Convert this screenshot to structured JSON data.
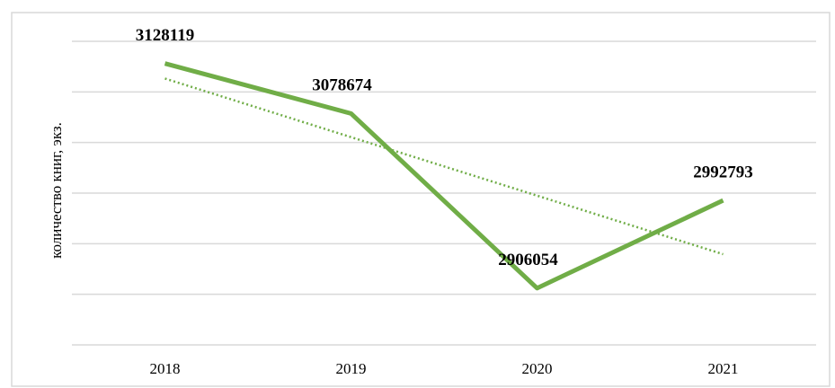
{
  "chart_data": {
    "type": "line",
    "y_label": "количество книг, экз.",
    "categories": [
      "2018",
      "2019",
      "2020",
      "2021"
    ],
    "series": [
      {
        "name": "количество книг",
        "color": "#70ad47",
        "values": [
          3128119,
          3078674,
          2906054,
          2992793
        ]
      }
    ],
    "ylim": [
      2850000,
      3150000
    ],
    "yticks": [
      2850000,
      2900000,
      2950000,
      3000000,
      3050000,
      3100000,
      3150000
    ],
    "grid": true,
    "trendline": true
  }
}
